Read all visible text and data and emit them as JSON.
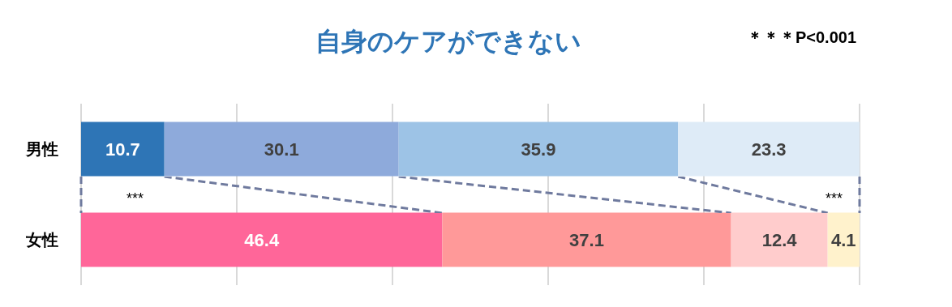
{
  "chart_data": {
    "type": "bar",
    "orientation": "horizontal",
    "stacked": true,
    "title": "自身のケアができない",
    "categories": [
      "男性",
      "女性"
    ],
    "series": [
      {
        "colors": [
          "#2e75b6",
          "#ff6699"
        ],
        "values": [
          10.7,
          46.4
        ]
      },
      {
        "colors": [
          "#8eaadb",
          "#ff9999"
        ],
        "values": [
          30.1,
          37.1
        ]
      },
      {
        "colors": [
          "#9dc3e6",
          "#ffcccc"
        ],
        "values": [
          35.9,
          12.4
        ]
      },
      {
        "colors": [
          "#deebf7",
          "#fff2cc"
        ],
        "values": [
          23.3,
          4.1
        ]
      }
    ],
    "xlim": [
      0,
      100
    ],
    "xticks": [
      {
        "value": 0,
        "label": null
      },
      {
        "value": 20,
        "label": null
      },
      {
        "value": 40,
        "label": null
      },
      {
        "value": 60,
        "label": null
      },
      {
        "value": 80,
        "label": null
      },
      {
        "value": 100,
        "label": null
      }
    ],
    "tick_labels": "y",
    "grid": "x",
    "data_labels": true,
    "annotations": [
      "＊＊＊P<0.001",
      "***",
      "***"
    ]
  }
}
